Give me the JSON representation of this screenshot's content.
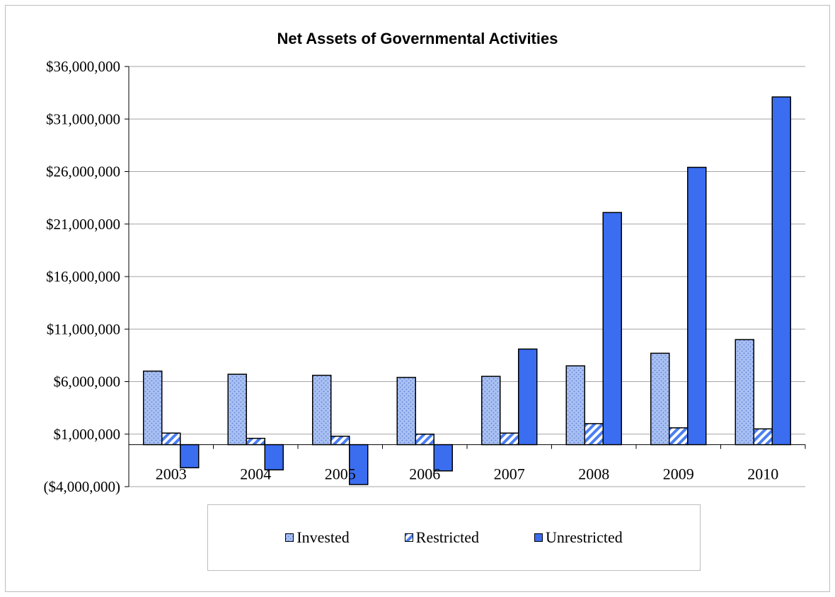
{
  "chart_data": {
    "type": "bar",
    "title": "Net Assets of Governmental Activities",
    "xlabel": "",
    "ylabel": "",
    "ylim": [
      -4000000,
      36000000
    ],
    "yticks": [
      -4000000,
      1000000,
      6000000,
      11000000,
      16000000,
      21000000,
      26000000,
      31000000,
      36000000
    ],
    "ytick_labels": [
      "($4,000,000)",
      "$1,000,000",
      "$6,000,000",
      "$11,000,000",
      "$16,000,000",
      "$21,000,000",
      "$26,000,000",
      "$31,000,000",
      "$36,000,000"
    ],
    "categories": [
      "2003",
      "2004",
      "2005",
      "2006",
      "2007",
      "2008",
      "2009",
      "2010"
    ],
    "series": [
      {
        "name": "Invested",
        "values": [
          7000000,
          6700000,
          6600000,
          6400000,
          6500000,
          7500000,
          8700000,
          10000000
        ]
      },
      {
        "name": "Restricted",
        "values": [
          1100000,
          600000,
          800000,
          1000000,
          1100000,
          2000000,
          1600000,
          1500000
        ]
      },
      {
        "name": "Unrestricted",
        "values": [
          -2200000,
          -2400000,
          -3800000,
          -2500000,
          9100000,
          22100000,
          26400000,
          33100000
        ]
      }
    ],
    "grid": true,
    "legend_position": "bottom"
  },
  "colors": {
    "invested": "#9fb8ef",
    "restricted": "#4a7ef2",
    "unrestricted": "#3a6df0"
  }
}
